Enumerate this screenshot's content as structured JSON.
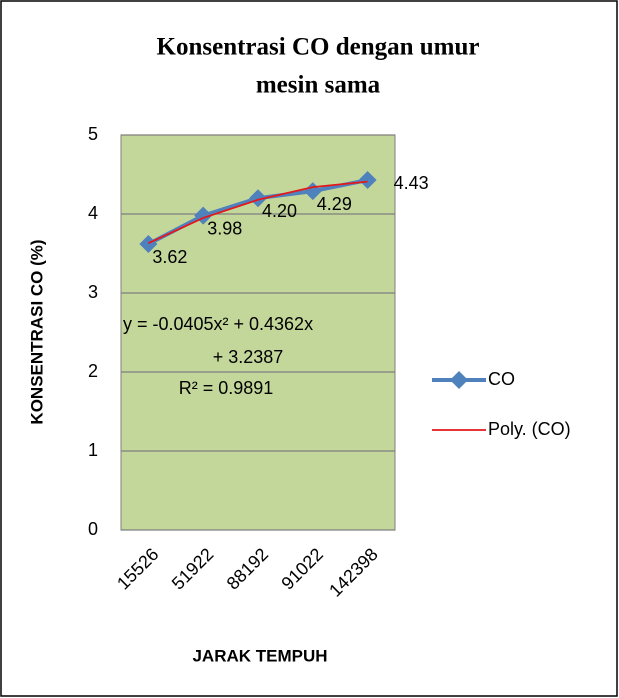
{
  "chart_data": {
    "type": "line",
    "title": [
      "Konsentrasi CO dengan umur",
      "mesin sama"
    ],
    "x_label": "JARAK TEMPUH",
    "y_label": "KONSENTRASI CO (%)",
    "categories": [
      "15526",
      "51922",
      "88192",
      "91022",
      "142398"
    ],
    "series": [
      {
        "name": "CO",
        "color": "#4f81bd",
        "values": [
          3.62,
          3.98,
          4.2,
          4.29,
          4.43
        ],
        "value_labels": [
          "3.62",
          "3.98",
          "4.20",
          "4.29",
          "4.43"
        ],
        "marker": "diamond"
      },
      {
        "name": "Poly. (CO)",
        "color": "#e3191c",
        "values": [
          3.63,
          3.95,
          4.18,
          4.34,
          4.41
        ]
      }
    ],
    "annotations": [
      "y = -0.0405x² + 0.4362x",
      "+ 3.2387",
      "R² = 0.9891"
    ],
    "ylim": [
      0,
      5
    ],
    "yticks": [
      0,
      1,
      2,
      3,
      4,
      5
    ],
    "grid": true,
    "plot_background": "#c4d79b",
    "legend": "right"
  }
}
